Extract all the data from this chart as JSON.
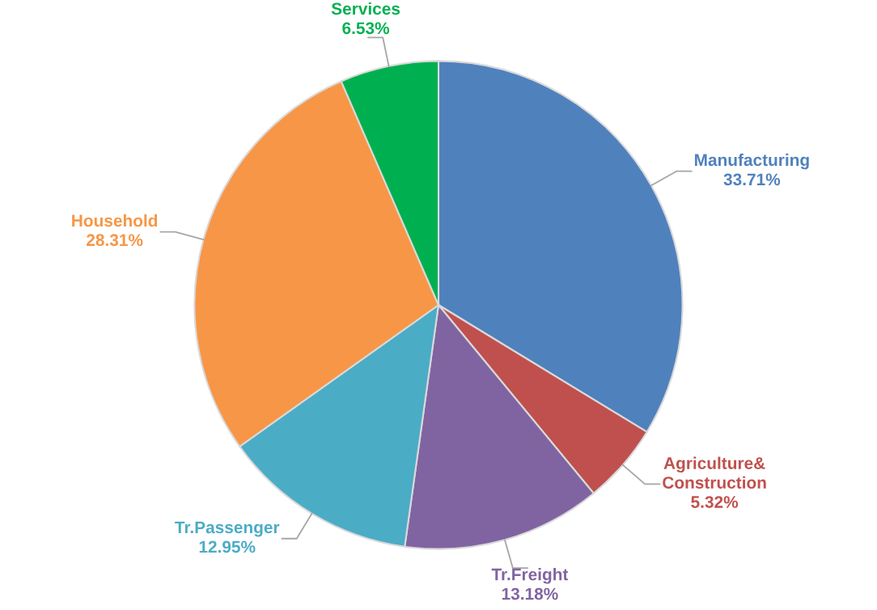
{
  "chart_data": {
    "type": "pie",
    "categories": [
      "Manufacturing",
      "Agriculture&\nConstruction",
      "Tr.Freight",
      "Tr.Passenger",
      "Household",
      "Services"
    ],
    "values": [
      33.71,
      5.32,
      13.18,
      12.95,
      28.31,
      6.53
    ],
    "value_labels": [
      "33.71%",
      "5.32%",
      "13.18%",
      "12.95%",
      "28.31%",
      "6.53%"
    ],
    "colors": [
      "#4f81bd",
      "#c0504d",
      "#8064a2",
      "#4bacc6",
      "#f79646",
      "#00b050"
    ],
    "legend": false
  }
}
